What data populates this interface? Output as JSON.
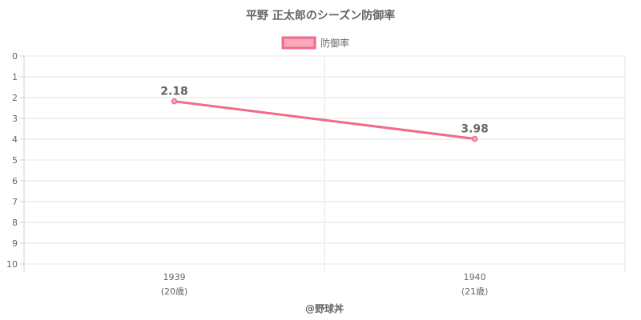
{
  "chart_data": {
    "type": "line",
    "title": "平野 正太郎のシーズン防御率",
    "categories": [
      {
        "year": "1939",
        "age": "(20歳)"
      },
      {
        "year": "1940",
        "age": "(21歳)"
      }
    ],
    "series": [
      {
        "name": "防御率",
        "values": [
          2.18,
          3.98
        ],
        "data_labels": [
          "2.18",
          "3.98"
        ],
        "color": "#f06b8a"
      }
    ],
    "yaxis": {
      "min": 0,
      "max": 10,
      "step": 1,
      "reversed": true
    },
    "grid": true,
    "legend": "top-center",
    "credit": "@野球丼"
  }
}
